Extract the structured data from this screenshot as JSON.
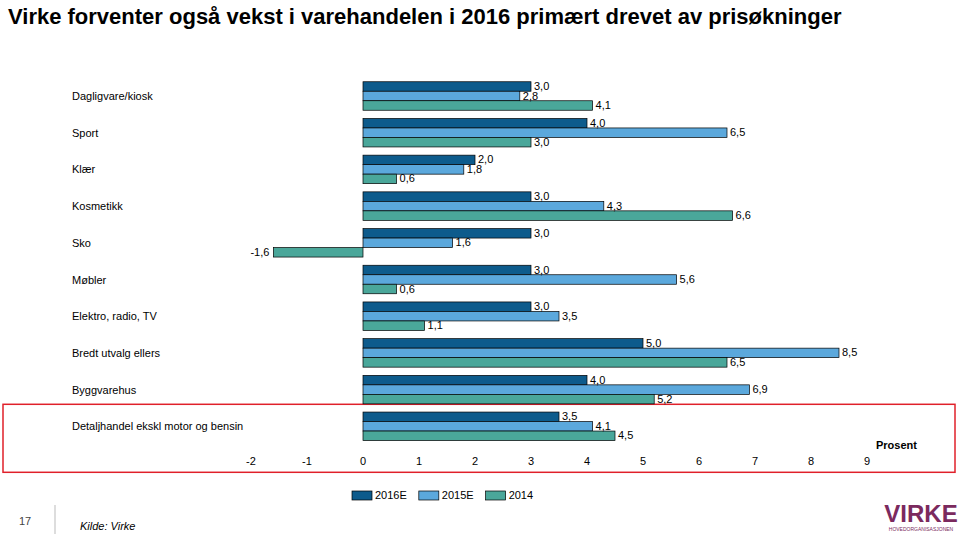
{
  "chart_data": {
    "type": "bar",
    "orientation": "horizontal",
    "title": "Virke forventer også vekst i varehandelen i 2016 primært drevet av prisøkninger",
    "x_label": "Prosent",
    "annotations": [
      "17",
      "Kilde: Virke",
      "VIRKE",
      "HOVEDORGANISASJONEN"
    ],
    "categories": [
      "Dagligvare/kiosk",
      "Sport",
      "Klær",
      "Kosmetikk",
      "Sko",
      "Møbler",
      "Elektro, radio, TV",
      "Bredt utvalg ellers",
      "Byggvarehus",
      "Detaljhandel ekskl motor og bensin"
    ],
    "series": [
      {
        "name": "2016E",
        "color": "#0d5b8c",
        "values": [
          3.0,
          4.0,
          2.0,
          3.0,
          3.0,
          3.0,
          3.0,
          5.0,
          4.0,
          3.5
        ],
        "value_labels": [
          "3,0",
          "4,0",
          "2,0",
          "3,0",
          "3,0",
          "3,0",
          "3,0",
          "5,0",
          "4,0",
          "3,5"
        ]
      },
      {
        "name": "2015E",
        "color": "#5ba8dc",
        "values": [
          2.8,
          6.5,
          1.8,
          4.3,
          1.6,
          5.6,
          3.5,
          8.5,
          6.9,
          4.1
        ],
        "value_labels": [
          "2,8",
          "6,5",
          "1,8",
          "4,3",
          "1,6",
          "5,6",
          "3,5",
          "8,5",
          "6,9",
          "4,1"
        ]
      },
      {
        "name": "2014",
        "color": "#4aa79a",
        "values": [
          4.1,
          3.0,
          0.6,
          6.6,
          -1.6,
          0.6,
          1.1,
          6.5,
          5.2,
          4.5
        ],
        "value_labels": [
          "4,1",
          "3,0",
          "0,6",
          "6,6",
          "-1,6",
          "0,6",
          "1,1",
          "6,5",
          "5,2",
          "4,5"
        ]
      }
    ],
    "xlim": [
      -2,
      9
    ],
    "xticks": [
      -2,
      -1,
      0,
      1,
      2,
      3,
      4,
      5,
      6,
      7,
      8,
      9
    ],
    "grid": false,
    "legend": "bottom",
    "data_labels": true
  }
}
